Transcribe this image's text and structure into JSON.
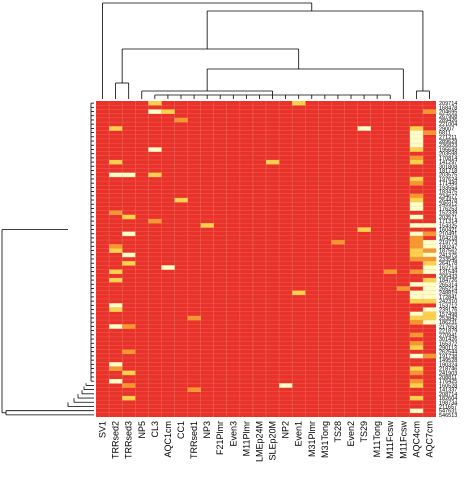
{
  "chart_data": {
    "type": "heatmap",
    "title": "",
    "xlabel": "",
    "ylabel": "",
    "columns": [
      "SV1",
      "TRRsed2",
      "TRRsed3",
      "NP5",
      "CL3",
      "AQC1cm",
      "CC1",
      "TRRsed1",
      "NP3",
      "F21Plmr",
      "Even3",
      "M11Plmr",
      "LMEp24M",
      "SLEp20M",
      "NP2",
      "Even1",
      "M31Plmr",
      "M31Tong",
      "TS28",
      "Even2",
      "TS29",
      "M11Tong",
      "M11Fcsw",
      "M11Fcsw",
      "AQC4cm",
      "AQC7cm"
    ],
    "rows_visible_labels": [
      "209714",
      "168478",
      "204695",
      "267908",
      "289426",
      "221004",
      "29007",
      "6811",
      "271211",
      "289629",
      "236823",
      "195649",
      "203598",
      "170814",
      "141297",
      "301808",
      "181718",
      "203575",
      "197624",
      "171449",
      "193554",
      "183475",
      "234677",
      "264478",
      "245912",
      "176253",
      "152339",
      "203571",
      "171314",
      "154325",
      "160421",
      "210491",
      "164218",
      "219773",
      "180247",
      "187562",
      "241375",
      "233546",
      "264178",
      "162714",
      "131549",
      "206433",
      "184726",
      "265314",
      "265214",
      "248819",
      "172841",
      "242310",
      "153712",
      "239176",
      "157498",
      "253842",
      "186231",
      "217653",
      "221879",
      "270941",
      "301426",
      "165372",
      "290113",
      "262544",
      "191738",
      "149528",
      "190324",
      "218746",
      "241903",
      "208811",
      "176425",
      "160528",
      "141337",
      "208714",
      "182604",
      "198734",
      "211657",
      "547631",
      "546513"
    ],
    "cell_scale": "0 = dark red (low), 1 = pale yellow (high)",
    "colors": {
      "low": "#e8322a",
      "mid": "#f07f2a",
      "high": "#ffffc8",
      "grid": "#f6a38f"
    },
    "values_description_hotspots": [
      {
        "col": "AQC4cm",
        "rows": "dense high values in most rows"
      },
      {
        "col": "AQC7cm",
        "rows": "high values in middle band"
      },
      {
        "col": "TRRsed2",
        "rows": "scattered high values"
      },
      {
        "col": "TRRsed3",
        "rows": "scattered high values"
      }
    ]
  }
}
